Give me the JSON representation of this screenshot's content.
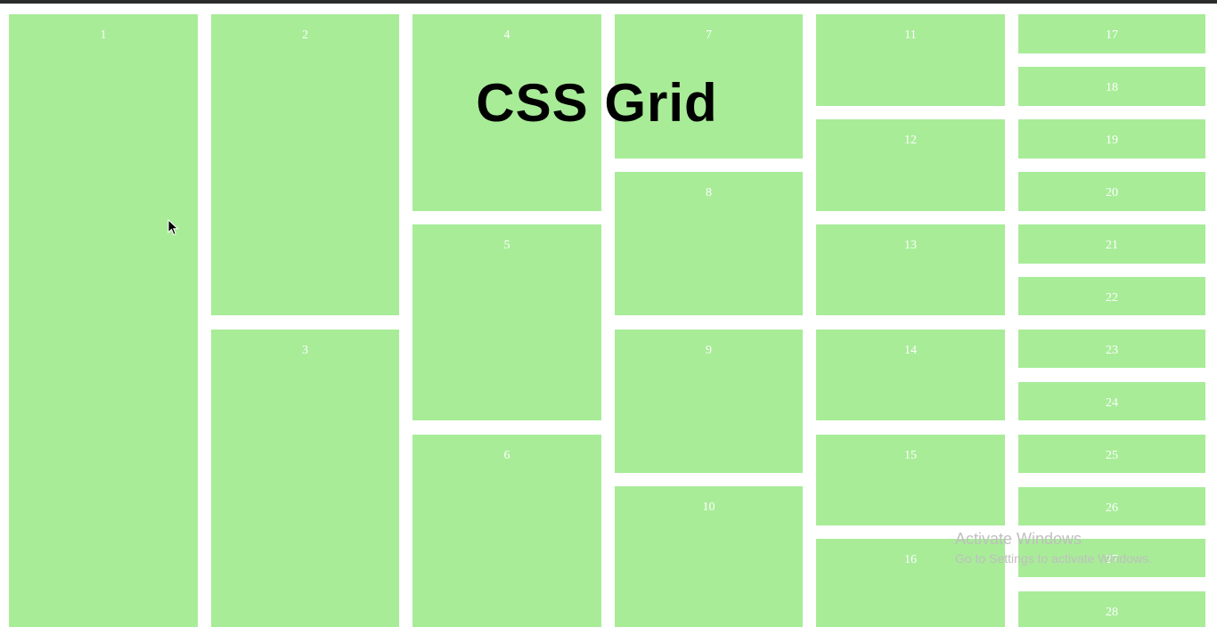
{
  "headline": "CSS Grid",
  "colors": {
    "cell": "#a8ec98",
    "cell_label": "#ffffff",
    "background": "#ffffff",
    "top_bar": "#2b2b2b"
  },
  "cells": [
    {
      "label": "1"
    },
    {
      "label": "2"
    },
    {
      "label": "3"
    },
    {
      "label": "4"
    },
    {
      "label": "5"
    },
    {
      "label": "6"
    },
    {
      "label": "7"
    },
    {
      "label": "8"
    },
    {
      "label": "9"
    },
    {
      "label": "10"
    },
    {
      "label": "11"
    },
    {
      "label": "12"
    },
    {
      "label": "13"
    },
    {
      "label": "14"
    },
    {
      "label": "15"
    },
    {
      "label": "16"
    },
    {
      "label": "17"
    },
    {
      "label": "18"
    },
    {
      "label": "19"
    },
    {
      "label": "20"
    },
    {
      "label": "21"
    },
    {
      "label": "22"
    },
    {
      "label": "23"
    },
    {
      "label": "24"
    },
    {
      "label": "25"
    },
    {
      "label": "26"
    },
    {
      "label": "27"
    },
    {
      "label": "28"
    }
  ],
  "watermark": {
    "title": "Activate Windows",
    "subtitle": "Go to Settings to activate Windows."
  },
  "cursor_icon": "arrow-cursor-icon"
}
